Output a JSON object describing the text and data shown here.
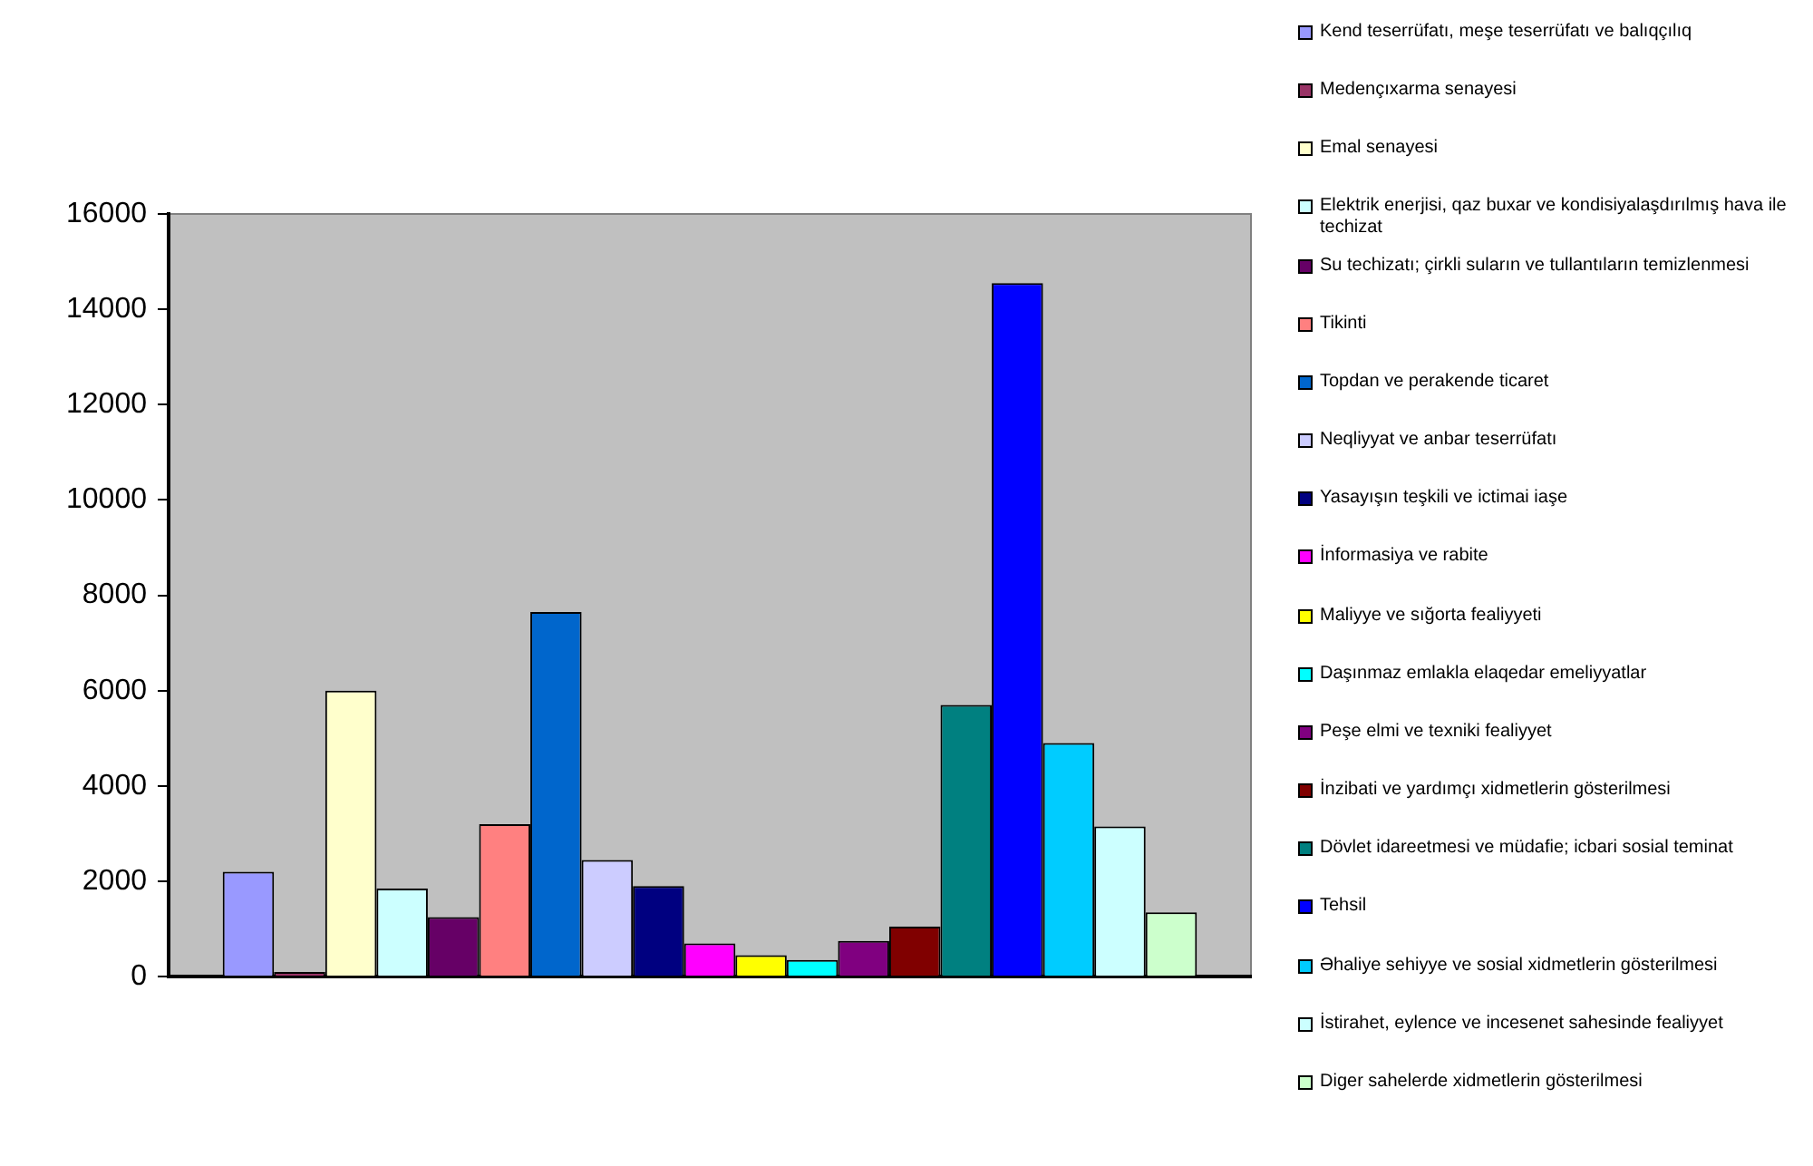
{
  "chart_data": {
    "type": "bar",
    "categories": [
      null
    ],
    "series": [
      {
        "name": "Kend teserrüfatı, meşe teserrüfatı ve balıqçılıq",
        "color": "#9999ff",
        "values": [
          2200
        ]
      },
      {
        "name": "Medençıxarma senayesi",
        "color": "#993366",
        "values": [
          100
        ]
      },
      {
        "name": "Emal senayesi",
        "color": "#ffffcc",
        "values": [
          6000
        ]
      },
      {
        "name": "Elektrik enerjisi, qaz buxar ve kondisiyalaşdırılmış hava ile techizat",
        "color": "#ccffff",
        "values": [
          1850
        ]
      },
      {
        "name": "Su techizatı; çirkli suların ve tullantıların temizlenmesi",
        "color": "#660066",
        "values": [
          1250
        ]
      },
      {
        "name": "Tikinti",
        "color": "#ff8080",
        "values": [
          3200
        ]
      },
      {
        "name": "Topdan ve perakende ticaret",
        "color": "#0066cc",
        "values": [
          7650
        ]
      },
      {
        "name": "Neqliyyat ve anbar teserrüfatı",
        "color": "#ccccff",
        "values": [
          2450
        ]
      },
      {
        "name": "Yasayışın teşkili ve ictimai iaşe",
        "color": "#000080",
        "values": [
          1900
        ]
      },
      {
        "name": "İnformasiya ve rabite",
        "color": "#ff00ff",
        "values": [
          700
        ]
      },
      {
        "name": "Maliyye ve sığorta fealiyyeti",
        "color": "#ffff00",
        "values": [
          450
        ]
      },
      {
        "name": "Daşınmaz emlakla elaqedar emeliyyatlar",
        "color": "#00ffff",
        "values": [
          350
        ]
      },
      {
        "name": "Peşe elmi ve texniki fealiyyet",
        "color": "#800080",
        "values": [
          750
        ]
      },
      {
        "name": "İnzibati ve yardımçı xidmetlerin gösterilmesi",
        "color": "#800000",
        "values": [
          1050
        ]
      },
      {
        "name": "Dövlet idareetmesi ve müdafie; icbari sosial teminat",
        "color": "#008080",
        "values": [
          5700
        ]
      },
      {
        "name": "Tehsil",
        "color": "#0000ff",
        "values": [
          14550
        ]
      },
      {
        "name": "Əhaliye sehiyye ve sosial xidmetlerin gösterilmesi",
        "color": "#00ccff",
        "values": [
          4900
        ]
      },
      {
        "name": "İstirahet, eylence ve incesenet sahesinde fealiyyet",
        "color": "#ccffff",
        "values": [
          3150
        ]
      },
      {
        "name": "Diger sahelerde xidmetlerin gösterilmesi",
        "color": "#ccffcc",
        "values": [
          1350
        ]
      }
    ],
    "ylim": [
      0,
      16000
    ],
    "yticks": [
      0,
      2000,
      4000,
      6000,
      8000,
      10000,
      12000,
      14000,
      16000
    ],
    "grid": false,
    "legend": "right"
  }
}
